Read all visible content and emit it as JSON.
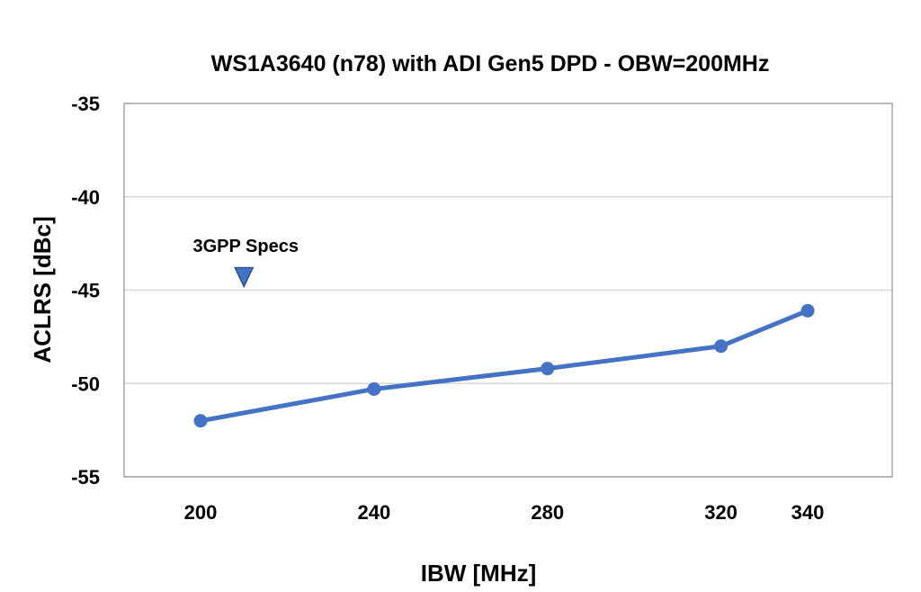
{
  "chart_data": {
    "type": "line",
    "title": "WS1A3640 (n78) with ADI Gen5 DPD - OBW=200MHz",
    "xlabel": "IBW [MHz]",
    "ylabel": "ACLRS [dBc]",
    "categories": [
      "200",
      "240",
      "280",
      "320",
      "340"
    ],
    "yticks": [
      "-35",
      "-40",
      "-45",
      "-50",
      "-55"
    ],
    "ylim": [
      -55,
      -35
    ],
    "grid": true,
    "series": [
      {
        "values": [
          -52.0,
          -50.3,
          -49.2,
          -48.0,
          -46.1
        ],
        "color": "#4472C4"
      }
    ],
    "annotation": {
      "text": "3GPP Specs",
      "marker": "triangle-down",
      "x": 210,
      "y": -44.3,
      "color": "#4472C4"
    }
  }
}
